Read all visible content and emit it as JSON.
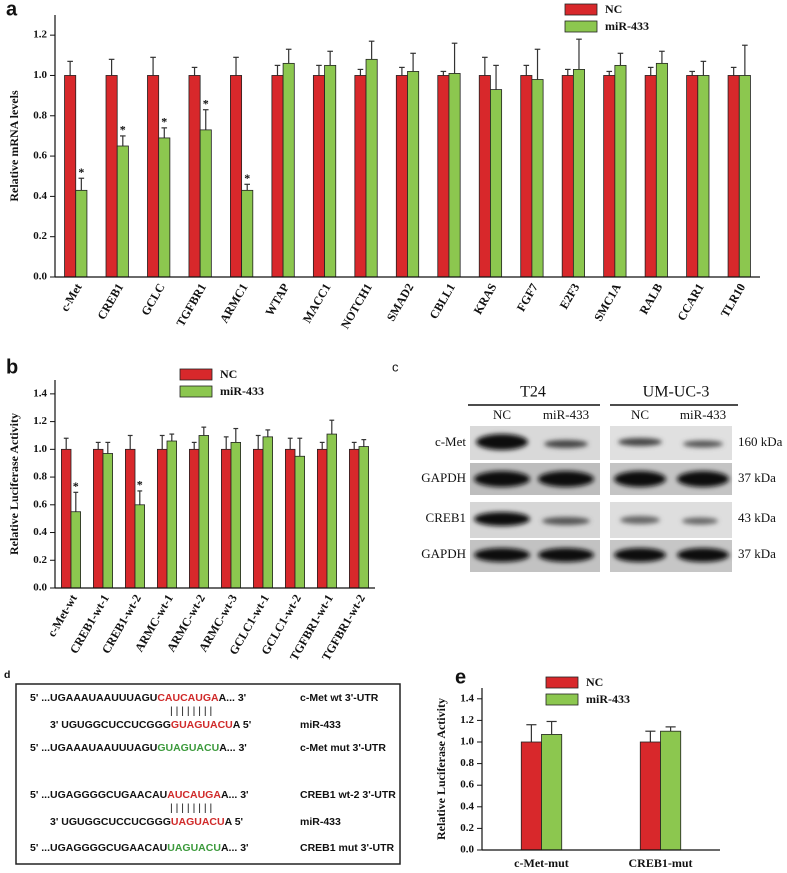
{
  "chart_data": [
    {
      "type": "bar",
      "panel_label": "a",
      "y_label": "Relative mRNA levels",
      "categories": [
        "c-Met",
        "CREB1",
        "GCLC",
        "TGFBR1",
        "ARMC1",
        "WTAP",
        "MACC1",
        "NOTCH1",
        "SMAD2",
        "CBLL1",
        "KRAS",
        "FGF7",
        "E2F3",
        "SMC1A",
        "RALB",
        "CCAR1",
        "TLR10"
      ],
      "series": [
        {
          "name": "NC",
          "color": "#d8282b",
          "values": [
            1.0,
            1.0,
            1.0,
            1.0,
            1.0,
            1.0,
            1.0,
            1.0,
            1.0,
            1.0,
            1.0,
            1.0,
            1.0,
            1.0,
            1.0,
            1.0,
            1.0
          ],
          "errors": [
            0.07,
            0.08,
            0.09,
            0.04,
            0.09,
            0.05,
            0.05,
            0.03,
            0.04,
            0.02,
            0.09,
            0.05,
            0.03,
            0.02,
            0.04,
            0.02,
            0.04
          ]
        },
        {
          "name": "miR-433",
          "color": "#8cc74f",
          "values": [
            0.43,
            0.65,
            0.69,
            0.73,
            0.43,
            1.06,
            1.05,
            1.08,
            1.02,
            1.01,
            0.93,
            0.98,
            1.03,
            1.05,
            1.06,
            1.0,
            1.0
          ],
          "errors": [
            0.06,
            0.05,
            0.05,
            0.1,
            0.03,
            0.07,
            0.07,
            0.09,
            0.09,
            0.15,
            0.12,
            0.15,
            0.15,
            0.06,
            0.06,
            0.07,
            0.15
          ],
          "significance": [
            "*",
            "*",
            "*",
            "*",
            "*",
            null,
            null,
            null,
            null,
            null,
            null,
            null,
            null,
            null,
            null,
            null,
            null
          ]
        }
      ],
      "ylim": [
        0,
        1.3
      ],
      "yticks": [
        {
          "value": 0,
          "label": "0.0"
        },
        0.2,
        0.4,
        0.6,
        0.8,
        {
          "value": 1,
          "label": "1.0"
        },
        1.2
      ],
      "legend": "upper right"
    },
    {
      "type": "bar",
      "panel_label": "b",
      "y_label": "Relative Luciferase Activity",
      "categories": [
        "c-Met-wt",
        "CREB1-wt-1",
        "CREB1-wt-2",
        "ARMC-wt-1",
        "ARMC-wt-2",
        "ARMC-wt-3",
        "GCLC1-wt-1",
        "GCLC1-wt-2",
        "TGFBR1-wt-1",
        "TGFBR1-wt-2"
      ],
      "series": [
        {
          "name": "NC",
          "color": "#d8282b",
          "values": [
            1.0,
            1.0,
            1.0,
            1.0,
            1.0,
            1.0,
            1.0,
            1.0,
            1.0,
            1.0
          ],
          "errors": [
            0.08,
            0.05,
            0.1,
            0.1,
            0.05,
            0.09,
            0.1,
            0.08,
            0.05,
            0.05
          ]
        },
        {
          "name": "miR-433",
          "color": "#8cc74f",
          "values": [
            0.55,
            0.97,
            0.6,
            1.06,
            1.1,
            1.05,
            1.09,
            0.95,
            1.11,
            1.02
          ],
          "errors": [
            0.14,
            0.08,
            0.1,
            0.05,
            0.06,
            0.1,
            0.05,
            0.13,
            0.1,
            0.05
          ],
          "significance": [
            "*",
            null,
            "*",
            null,
            null,
            null,
            null,
            null,
            null,
            null
          ]
        }
      ],
      "ylim": [
        0,
        1.5
      ],
      "yticks": [
        {
          "value": 0,
          "label": "0.0"
        },
        0.2,
        0.4,
        0.6,
        0.8,
        {
          "value": 1,
          "label": "1.0"
        },
        1.2,
        1.4
      ],
      "legend": "upper right"
    },
    {
      "type": "bar",
      "panel_label": "e",
      "y_label": "Relative Luciferase Activity",
      "categories": [
        "c-Met-mut",
        "CREB1-mut"
      ],
      "series": [
        {
          "name": "NC",
          "color": "#d8282b",
          "values": [
            1.0,
            1.0
          ],
          "errors": [
            0.16,
            0.1
          ]
        },
        {
          "name": "miR-433",
          "color": "#8cc74f",
          "values": [
            1.07,
            1.1
          ],
          "errors": [
            0.12,
            0.04
          ]
        }
      ],
      "ylim": [
        0,
        1.5
      ],
      "yticks": [
        {
          "value": 0,
          "label": "0.0"
        },
        0.2,
        0.4,
        0.6,
        0.8,
        {
          "value": 1,
          "label": "1.0"
        },
        1.2,
        1.4
      ],
      "legend": "upper center"
    }
  ],
  "blot": {
    "panel_label": "c",
    "cell_lines": [
      "T24",
      "UM-UC-3"
    ],
    "lanes": [
      "NC",
      "miR-433",
      "NC",
      "miR-433"
    ],
    "rows": [
      {
        "protein": "c-Met",
        "size": "160 kDa"
      },
      {
        "protein": "GAPDH",
        "size": "37 kDa"
      },
      {
        "protein": "CREB1",
        "size": "43 kDa"
      },
      {
        "protein": "GAPDH",
        "size": "37 kDa"
      }
    ]
  },
  "sequences": {
    "panel_label": "d",
    "pairing": "| | | | | | | |",
    "lines": [
      {
        "prefix": "5' ...UGAAAUAAUUUAGU",
        "site": "CAUCAUGA",
        "site_color": "#d02a2a",
        "suffix": "A... 3'",
        "label": "c-Met wt 3'-UTR",
        "label_color": "#111"
      },
      {
        "prefix": "3' UGUGGCUCCUCGGG",
        "site": "GUAGUACU",
        "site_color": "#d02a2a",
        "suffix": "A 5'",
        "label": "miR-433",
        "label_color": "#e8711d"
      },
      {
        "prefix": "5' ...UGAAAUAAUUUAGU",
        "site": "GUAGUACU",
        "site_color": "#3c9a3c",
        "suffix": "A... 3'",
        "label": "c-Met mut 3'-UTR",
        "label_color": "#111"
      },
      {
        "prefix": "5' ...UGAGGGGCUGAACAU",
        "site": "AUCAUGA",
        "site_color": "#d02a2a",
        "suffix": "A... 3'",
        "label": "CREB1 wt-2 3'-UTR",
        "label_color": "#111"
      },
      {
        "prefix": "3' UGUGGCUCCUCGGG",
        "site": "UAGUACU",
        "site_color": "#d02a2a",
        "suffix": "A 5'",
        "label": "miR-433",
        "label_color": "#e8711d"
      },
      {
        "prefix": "5' ...UGAGGGGCUGAACAU",
        "site": "UAGUACU",
        "site_color": "#3c9a3c",
        "suffix": "A... 3'",
        "label": "CREB1 mut 3'-UTR",
        "label_color": "#111"
      }
    ]
  }
}
